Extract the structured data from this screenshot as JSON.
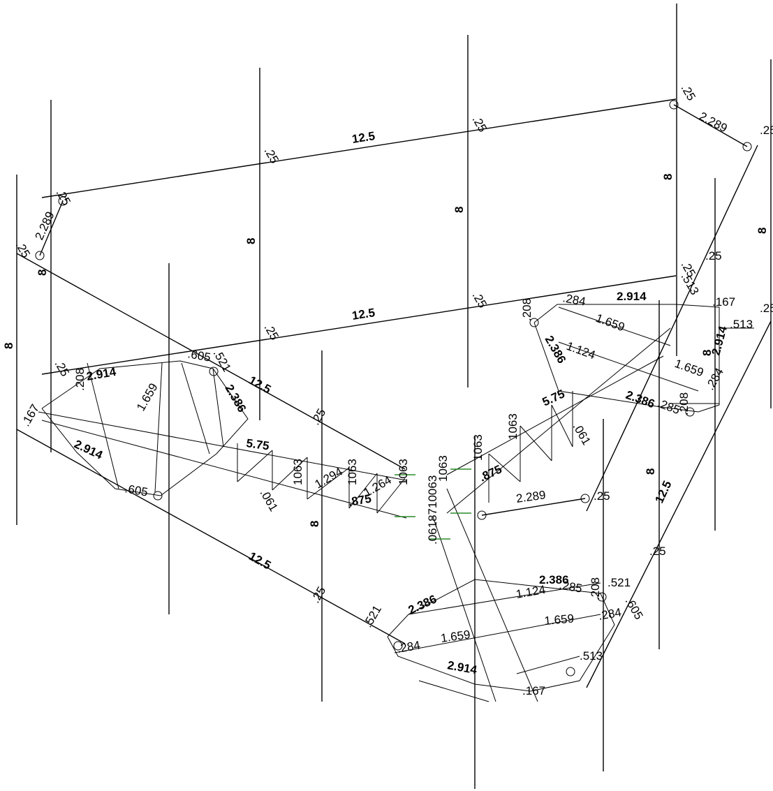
{
  "figure": {
    "members": {
      "top_beam_back": "12.5",
      "top_beam_mid": "12.5",
      "left_slope": "12.5",
      "right_slope": "12.5",
      "diag_left": "12.5",
      "bottom_front": "12.5"
    },
    "column_heights": [
      "8",
      "8",
      "8",
      "8",
      "8",
      "8",
      "8",
      "8",
      "8",
      "8"
    ],
    "offsets": [
      ".25",
      ".25",
      ".25",
      ".25",
      ".25",
      ".25",
      ".25",
      ".25",
      ".25",
      ".25",
      ".25",
      ".25",
      ".25",
      ".25",
      ".25",
      ".25"
    ],
    "truss_labels": {
      "a2289": "2.289",
      "a2914": "2.914",
      "a2386": "2.386",
      "a1659": "1.659",
      "a1124": "1.124",
      "a575": "5.75",
      "a1294": "1.294",
      "a1264": "1.264",
      "a1063": "1063",
      "a061": ".061",
      "a513": ".513",
      "a521": ".521",
      "a284": ".284",
      "a208": ".208",
      "a605": ".605",
      "a167": ".167",
      "a0618": ".0618710063",
      "a875": ".875",
      "a285": ".285"
    }
  }
}
